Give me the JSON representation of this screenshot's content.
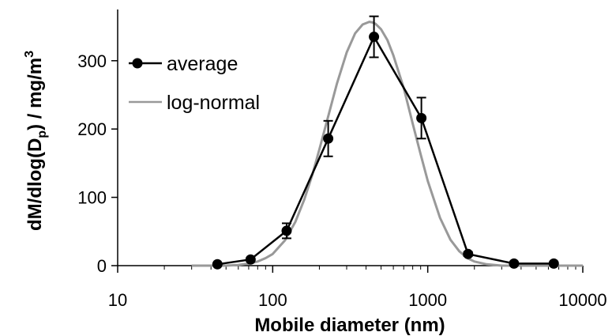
{
  "chart_data": {
    "type": "line",
    "xlabel": "Mobile diameter (nm)",
    "ylabel_main": "dM/dlog(D",
    "ylabel_sub": "p",
    "ylabel_tail": ")  / mg/m",
    "ylabel_sup": "3",
    "xscale": "log",
    "xlim": [
      10,
      10000
    ],
    "ylim": [
      0,
      375
    ],
    "xticks": [
      10,
      100,
      1000,
      10000
    ],
    "xtick_labels": [
      "10",
      "100",
      "1000",
      "10000"
    ],
    "yticks": [
      0,
      100,
      200,
      300
    ],
    "ytick_labels": [
      "0",
      "100",
      "200",
      "300"
    ],
    "grid": false,
    "legend_position": "top-left",
    "series": [
      {
        "name": "average",
        "color": "#000000",
        "marker": "circle",
        "x": [
          44,
          72,
          123,
          228,
          450,
          910,
          1820,
          3600,
          6500
        ],
        "y": [
          2,
          9,
          51,
          186,
          335,
          216,
          17,
          3,
          3
        ],
        "err": [
          0,
          2,
          11,
          26,
          30,
          30,
          3,
          0,
          0
        ]
      },
      {
        "name": "log-normal",
        "color": "#999999",
        "marker": "none",
        "x": [
          30,
          40,
          50,
          60,
          70,
          80,
          90,
          100,
          120,
          140,
          160,
          180,
          200,
          230,
          260,
          300,
          340,
          380,
          420,
          440,
          460,
          500,
          550,
          600,
          700,
          800,
          900,
          1000,
          1200,
          1400,
          1600,
          1800,
          2000,
          2400,
          3000,
          4000,
          5000,
          6000,
          7000,
          8000,
          9000,
          10000
        ],
        "y": [
          0,
          0,
          0,
          1,
          3,
          6,
          11,
          17,
          37,
          64,
          97,
          133,
          170,
          222,
          267,
          312,
          340,
          353,
          357,
          356,
          354,
          346,
          330,
          308,
          260,
          208,
          163,
          124,
          70,
          38,
          21,
          11,
          6,
          2,
          0,
          0,
          0,
          0,
          0,
          0,
          0,
          0
        ]
      }
    ]
  }
}
